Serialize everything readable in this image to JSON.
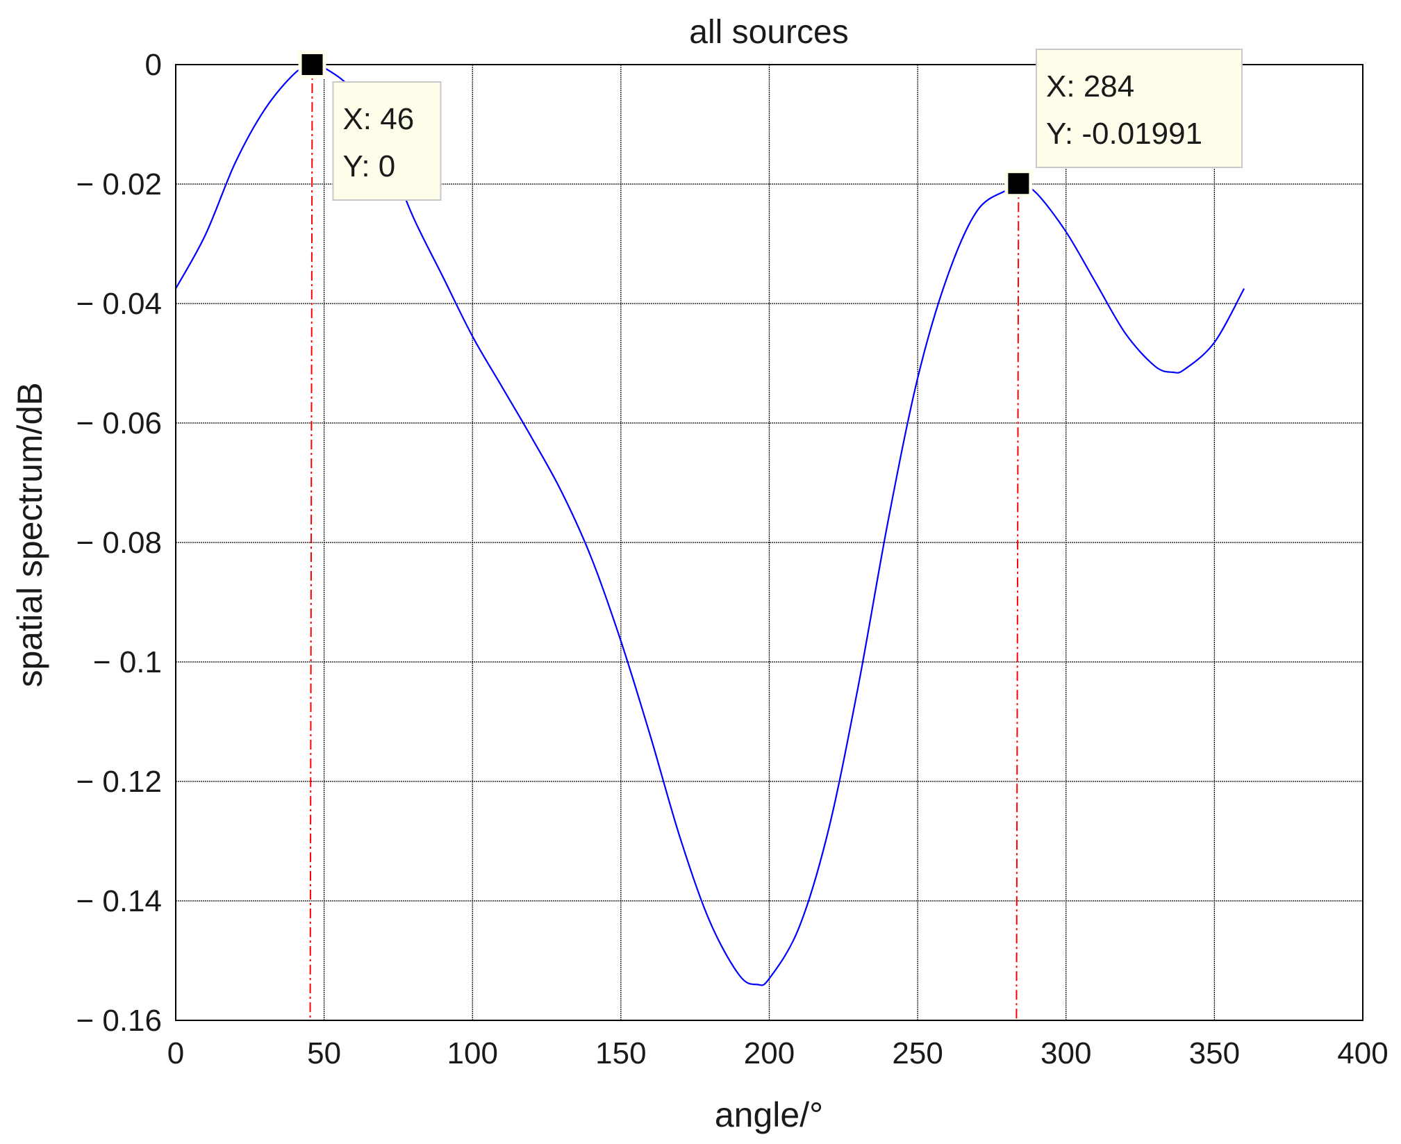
{
  "chart_data": {
    "type": "line",
    "title": "all sources",
    "xlabel": "angle/°",
    "ylabel": "spatial spectrum/dB",
    "xlim": [
      0,
      400
    ],
    "ylim": [
      -0.16,
      0
    ],
    "grid": true,
    "x_ticks": [
      0,
      50,
      100,
      150,
      200,
      250,
      300,
      350,
      400
    ],
    "x_tick_labels": [
      "0",
      "50",
      "100",
      "150",
      "200",
      "250",
      "300",
      "350",
      "400"
    ],
    "y_ticks": [
      0,
      -0.02,
      -0.04,
      -0.06,
      -0.08,
      -0.1,
      -0.12,
      -0.14,
      -0.16
    ],
    "y_tick_labels": [
      "0",
      "− 0.02",
      "− 0.04",
      "− 0.06",
      "− 0.08",
      "− 0.1",
      "− 0.12",
      "− 0.14",
      "− 0.16"
    ],
    "series": [
      {
        "color": "#0000ff",
        "x": [
          0,
          10,
          20,
          30,
          40,
          46,
          50,
          60,
          70,
          80,
          90,
          100,
          110,
          120,
          130,
          140,
          150,
          160,
          170,
          180,
          190,
          196,
          200,
          210,
          220,
          230,
          240,
          250,
          260,
          270,
          280,
          284,
          290,
          300,
          310,
          320,
          330,
          336,
          340,
          350,
          360
        ],
        "y": [
          -0.0375,
          -0.0285,
          -0.0165,
          -0.0075,
          -0.0015,
          0,
          -0.0005,
          -0.0045,
          -0.0135,
          -0.0255,
          -0.0355,
          -0.0455,
          -0.054,
          -0.0625,
          -0.0715,
          -0.0825,
          -0.0965,
          -0.1125,
          -0.1295,
          -0.1435,
          -0.1525,
          -0.154,
          -0.153,
          -0.1445,
          -0.128,
          -0.104,
          -0.0765,
          -0.0525,
          -0.0355,
          -0.0245,
          -0.021,
          -0.0199,
          -0.0215,
          -0.028,
          -0.0365,
          -0.045,
          -0.0505,
          -0.0515,
          -0.051,
          -0.0465,
          -0.0375
        ]
      }
    ],
    "markers": [
      {
        "x": 46,
        "y": 0,
        "label_x": "X: 46",
        "label_y": "Y: 0",
        "box_x_data": 53
      },
      {
        "x": 284,
        "y": -0.01991,
        "label_x": "X: 284",
        "label_y": "Y: -0.01991",
        "box_x_data": 290
      }
    ],
    "marker_line_color": "#ff0000",
    "datatip_bg": "#fefeea"
  }
}
